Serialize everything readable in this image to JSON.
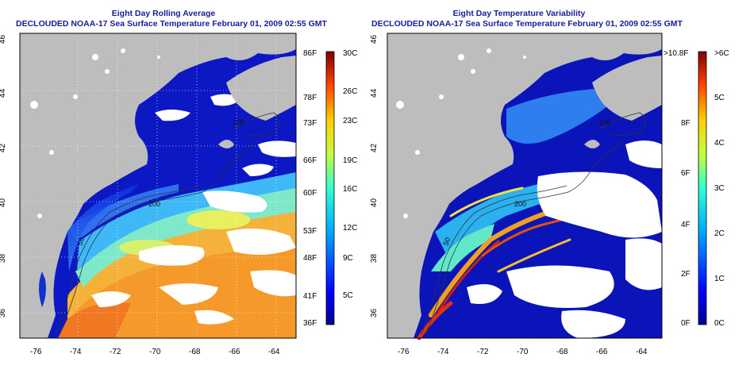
{
  "panels": [
    {
      "title_line1": "Eight Day Rolling Average",
      "title_line2": "DECLOUDED NOAA-17 Sea Surface Temperature February 01, 2009 02:55 GMT",
      "x_ticks": [
        "-76",
        "-74",
        "-72",
        "-70",
        "-68",
        "-66",
        "-64"
      ],
      "y_ticks": [
        "46",
        "44",
        "42",
        "40",
        "38",
        "36"
      ],
      "contour_labels": [
        "100",
        "200",
        "50"
      ],
      "colorbar_left": [
        "86F",
        "78F",
        "73F",
        "66F",
        "60F",
        "53F",
        "48F",
        "41F",
        "36F"
      ],
      "colorbar_right": [
        "30C",
        "26C",
        "23C",
        "19C",
        "16C",
        "12C",
        "9C",
        "5C"
      ]
    },
    {
      "title_line1": "Eight Day Temperature Variability",
      "title_line2": "DECLOUDED NOAA-17 Sea Surface Temperature February 01, 2009 02:55 GMT",
      "x_ticks": [
        "-76",
        "-74",
        "-72",
        "-70",
        "-68",
        "-66",
        "-64"
      ],
      "y_ticks": [
        "46",
        "44",
        "42",
        "40",
        "38",
        "36"
      ],
      "contour_labels": [
        "100",
        "200",
        "50"
      ],
      "colorbar_left": [
        ">10.8F",
        "8F",
        "6F",
        "4F",
        "2F",
        "0F"
      ],
      "colorbar_right": [
        ">6C",
        "5C",
        "4C",
        "3C",
        "2C",
        "1C",
        "0C"
      ]
    }
  ],
  "colors": {
    "land": "#bdbdbd",
    "title": "#1a1a9c",
    "cloud": "#ffffff"
  }
}
